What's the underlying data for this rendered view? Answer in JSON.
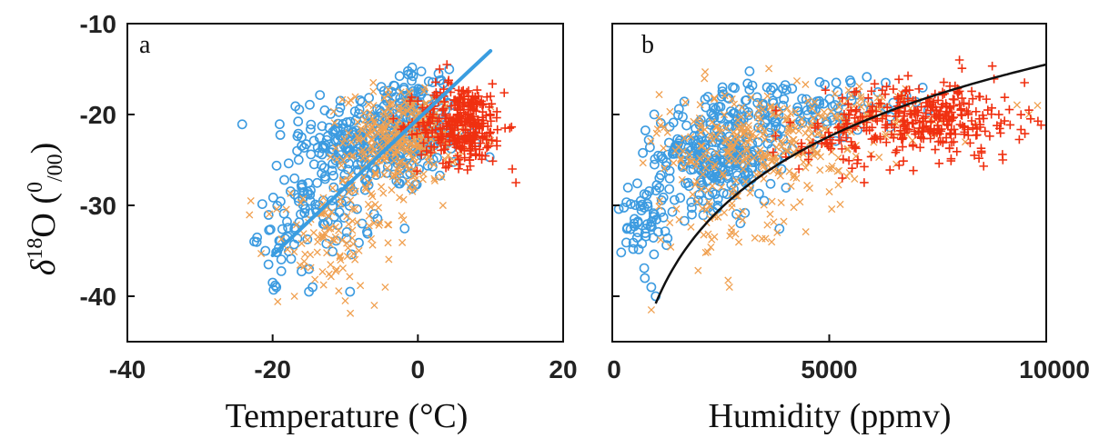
{
  "colors": {
    "circle": "#3C9BE0",
    "cross_x": "#F0A050",
    "plus": "#F03010",
    "fit_a": "#3A9DE0",
    "fit_b": "#111111"
  },
  "ylabel": {
    "delta": "δ",
    "sup": "18",
    "main": "O (",
    "sup2": "0",
    "sub": "/00",
    "close": ")"
  },
  "chart_data": [
    {
      "type": "scatter",
      "panel": "a",
      "xlabel": "Temperature (°C)",
      "xlim": [
        -40,
        20
      ],
      "ylim": [
        -45,
        -10
      ],
      "xticks": [
        -40,
        -20,
        0,
        20
      ],
      "xtick_labels": [
        "-40",
        "-20",
        "0",
        "20"
      ],
      "yticks": [
        -10,
        -20,
        -30,
        -40
      ],
      "ytick_labels": [
        "-10",
        "-20",
        "-30",
        "-40"
      ],
      "grid": false,
      "series": [
        {
          "marker": "circle",
          "clusters": [
            {
              "x": -4,
              "y": -22.5,
              "sx": 5,
              "sy": 3,
              "n": 300
            },
            {
              "x": -13,
              "y": -28,
              "sx": 4,
              "sy": 4,
              "n": 110
            },
            {
              "x": -18,
              "y": -33,
              "sx": 2,
              "sy": 2.5,
              "n": 30
            },
            {
              "x": 0,
              "y": -18,
              "sx": 2,
              "sy": 1.5,
              "n": 40
            }
          ],
          "points": [
            [
              -20,
              -38.5
            ],
            [
              -19.5,
              -39
            ],
            [
              -15,
              -39.5
            ],
            [
              -14.5,
              -39
            ],
            [
              -21,
              -35
            ],
            [
              -15,
              -37
            ]
          ]
        },
        {
          "marker": "x",
          "clusters": [
            {
              "x": -2,
              "y": -22.5,
              "sx": 4,
              "sy": 2.5,
              "n": 300
            },
            {
              "x": -13,
              "y": -34,
              "sx": 4,
              "sy": 3,
              "n": 90
            },
            {
              "x": -6,
              "y": -28,
              "sx": 3,
              "sy": 3,
              "n": 40
            }
          ],
          "points": [
            [
              -23,
              -29.5
            ],
            [
              -17,
              -40
            ],
            [
              -10,
              -40.5
            ],
            [
              -6,
              -41
            ],
            [
              -4.5,
              -39
            ]
          ]
        },
        {
          "marker": "plus",
          "clusters": [
            {
              "x": 6,
              "y": -21,
              "sx": 3,
              "sy": 2.2,
              "n": 320
            }
          ],
          "points": [
            [
              4,
              -14.5
            ],
            [
              13,
              -26
            ],
            [
              13.5,
              -27.5
            ],
            [
              12,
              -21.5
            ],
            [
              10,
              -18
            ],
            [
              3,
              -15
            ]
          ]
        }
      ],
      "fit_line": {
        "x": [
          -20,
          10
        ],
        "y": [
          -35.5,
          -13
        ]
      }
    },
    {
      "type": "scatter",
      "panel": "b",
      "xlabel": "Humidity (ppmv)",
      "xlim": [
        0,
        10000
      ],
      "ylim": [
        -45,
        -10
      ],
      "xticks": [
        0,
        5000,
        10000
      ],
      "xtick_labels": [
        "0",
        "5000",
        "10000"
      ],
      "yticks": [
        -10,
        -20,
        -30,
        -40
      ],
      "ytick_labels": [
        "",
        "",
        "",
        ""
      ],
      "grid": false,
      "series": [
        {
          "marker": "circle",
          "clusters": [
            {
              "x": 2400,
              "y": -24.5,
              "sx": 700,
              "sy": 2.8,
              "n": 280
            },
            {
              "x": 800,
              "y": -31.5,
              "sx": 300,
              "sy": 2.5,
              "n": 60
            },
            {
              "x": 4000,
              "y": -19.5,
              "sx": 900,
              "sy": 1.8,
              "n": 100
            },
            {
              "x": 6000,
              "y": -18.5,
              "sx": 600,
              "sy": 1.5,
              "n": 20
            }
          ],
          "points": [
            [
              750,
              -38
            ],
            [
              900,
              -39
            ],
            [
              1000,
              -40
            ],
            [
              3500,
              -29.5
            ],
            [
              3900,
              -26
            ],
            [
              5500,
              -16.5
            ],
            [
              6300,
              -16.5
            ]
          ]
        },
        {
          "marker": "x",
          "clusters": [
            {
              "x": 3500,
              "y": -23,
              "sx": 1200,
              "sy": 2.8,
              "n": 280
            },
            {
              "x": 2600,
              "y": -31,
              "sx": 800,
              "sy": 2.5,
              "n": 60
            },
            {
              "x": 6000,
              "y": -20,
              "sx": 1200,
              "sy": 1.8,
              "n": 80
            }
          ],
          "points": [
            [
              900,
              -41.5
            ],
            [
              2700,
              -39
            ],
            [
              3800,
              -33
            ],
            [
              9800,
              -19
            ],
            [
              9600,
              -20
            ]
          ]
        },
        {
          "marker": "plus",
          "clusters": [
            {
              "x": 7300,
              "y": -20.5,
              "sx": 1100,
              "sy": 2.0,
              "n": 300
            },
            {
              "x": 5500,
              "y": -23,
              "sx": 800,
              "sy": 1.8,
              "n": 50
            }
          ],
          "points": [
            [
              4300,
              -26
            ],
            [
              5300,
              -27
            ],
            [
              9000,
              -25
            ],
            [
              8000,
              -14
            ],
            [
              9500,
              -16.5
            ]
          ]
        }
      ],
      "fit_curve": {
        "type": "log",
        "x_range": [
          1000,
          10000
        ],
        "y_at": [
          [
            1000,
            -40.8
          ],
          [
            10000,
            -14.5
          ]
        ]
      }
    }
  ]
}
